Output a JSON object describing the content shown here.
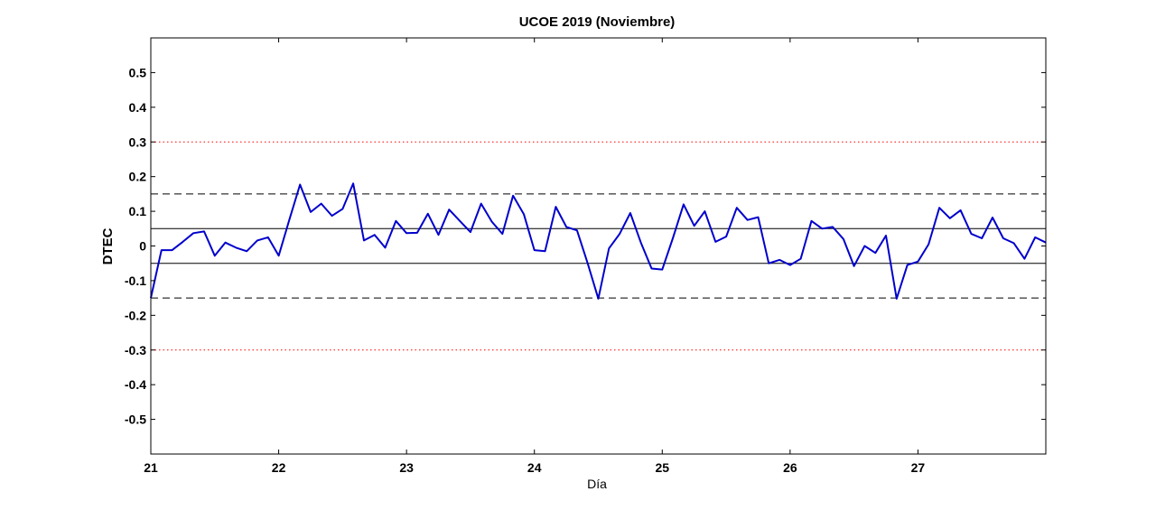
{
  "chart_data": {
    "type": "line",
    "title": "UCOE 2019 (Noviembre)",
    "xlabel": "Día",
    "ylabel": "DTEC",
    "xlim": [
      21,
      28
    ],
    "ylim": [
      -0.6,
      0.6
    ],
    "x_ticks": [
      21,
      22,
      23,
      24,
      25,
      26,
      27
    ],
    "x_tick_labels": [
      "21",
      "22",
      "23",
      "24",
      "25",
      "26",
      "27"
    ],
    "y_ticks": [
      -0.5,
      -0.4,
      -0.3,
      -0.2,
      -0.1,
      0,
      0.1,
      0.2,
      0.3,
      0.4,
      0.5
    ],
    "y_tick_labels": [
      "-0.5",
      "-0.4",
      "-0.3",
      "-0.2",
      "-0.1",
      "0",
      "0.1",
      "0.2",
      "0.3",
      "0.4",
      "0.5"
    ],
    "grid": false,
    "reference_lines": [
      {
        "y": 0.3,
        "style": "dotted",
        "color": "#ff0000"
      },
      {
        "y": -0.3,
        "style": "dotted",
        "color": "#ff0000"
      },
      {
        "y": 0.15,
        "style": "dashed",
        "color": "#000000"
      },
      {
        "y": -0.15,
        "style": "dashed",
        "color": "#000000"
      },
      {
        "y": 0.05,
        "style": "solid",
        "color": "#000000"
      },
      {
        "y": -0.05,
        "style": "solid",
        "color": "#000000"
      }
    ],
    "series": [
      {
        "color": "#0000cc",
        "x": [
          21.0,
          21.083,
          21.167,
          21.25,
          21.333,
          21.417,
          21.5,
          21.583,
          21.667,
          21.75,
          21.833,
          21.917,
          22.0,
          22.083,
          22.167,
          22.25,
          22.333,
          22.417,
          22.5,
          22.583,
          22.667,
          22.75,
          22.833,
          22.917,
          23.0,
          23.083,
          23.167,
          23.25,
          23.333,
          23.417,
          23.5,
          23.583,
          23.667,
          23.75,
          23.833,
          23.917,
          24.0,
          24.083,
          24.167,
          24.25,
          24.333,
          24.417,
          24.5,
          24.583,
          24.667,
          24.75,
          24.833,
          24.917,
          25.0,
          25.083,
          25.167,
          25.25,
          25.333,
          25.417,
          25.5,
          25.583,
          25.667,
          25.75,
          25.833,
          25.917,
          26.0,
          26.083,
          26.167,
          26.25,
          26.333,
          26.417,
          26.5,
          26.583,
          26.667,
          26.75,
          26.833,
          26.917,
          27.0,
          27.083,
          27.167,
          27.25,
          27.333,
          27.417,
          27.5,
          27.583,
          27.667,
          27.75,
          27.833,
          27.917,
          28.0
        ],
        "y": [
          -0.15,
          -0.012,
          -0.012,
          0.012,
          0.037,
          0.042,
          -0.028,
          0.01,
          -0.005,
          -0.015,
          0.016,
          0.025,
          -0.028,
          0.075,
          0.177,
          0.098,
          0.122,
          0.087,
          0.107,
          0.18,
          0.016,
          0.032,
          -0.005,
          0.072,
          0.037,
          0.038,
          0.093,
          0.032,
          0.105,
          0.072,
          0.04,
          0.122,
          0.07,
          0.035,
          0.145,
          0.092,
          -0.012,
          -0.015,
          0.113,
          0.055,
          0.045,
          -0.05,
          -0.152,
          -0.007,
          0.035,
          0.095,
          0.01,
          -0.065,
          -0.068,
          0.022,
          0.12,
          0.058,
          0.1,
          0.012,
          0.027,
          0.11,
          0.075,
          0.083,
          -0.05,
          -0.04,
          -0.055,
          -0.037,
          0.072,
          0.05,
          0.055,
          0.02,
          -0.058,
          0.0,
          -0.02,
          0.03,
          -0.152,
          -0.055,
          -0.045,
          0.005,
          0.11,
          0.08,
          0.103,
          0.035,
          0.022,
          0.082,
          0.022,
          0.008,
          -0.037,
          0.025,
          0.01
        ]
      }
    ]
  }
}
